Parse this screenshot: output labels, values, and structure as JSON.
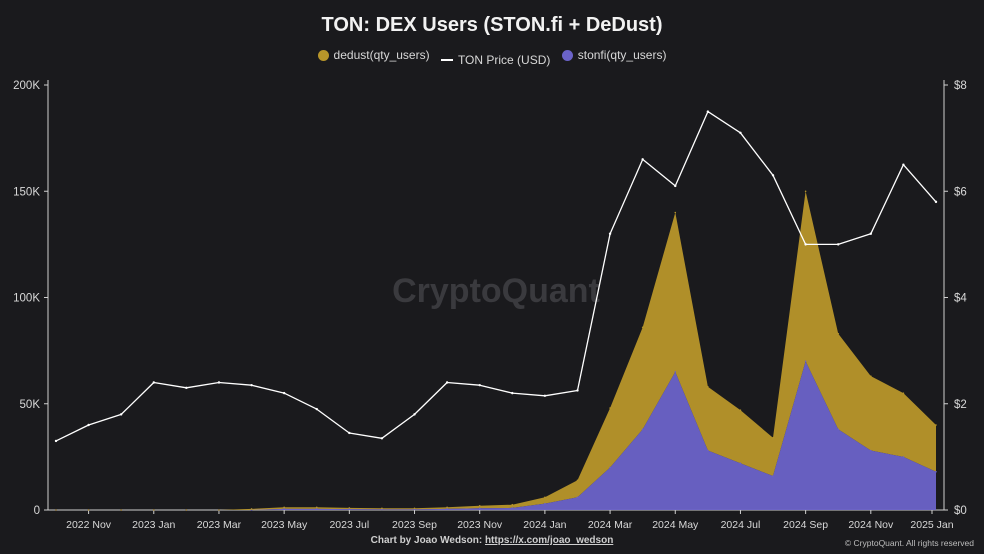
{
  "chart_data": {
    "type": "area",
    "title": "TON: DEX Users (STON.fi + DeDust)",
    "watermark": "CryptoQuant",
    "legend_position": "top-center",
    "grid": false,
    "x_ticks": [
      "2022 Nov",
      "2023 Jan",
      "2023 Mar",
      "2023 May",
      "2023 Jul",
      "2023 Sep",
      "2023 Nov",
      "2024 Jan",
      "2024 Mar",
      "2024 May",
      "2024 Jul",
      "2024 Sep",
      "2024 Nov",
      "2025 Jan"
    ],
    "y_left": {
      "ticks": [
        "0",
        "50K",
        "100K",
        "150K",
        "200K"
      ],
      "ylim": [
        0,
        200000
      ]
    },
    "y_right": {
      "ticks": [
        "$0",
        "$2",
        "$4",
        "$6",
        "$8"
      ],
      "ylim": [
        0,
        8
      ]
    },
    "x": [
      "2022-10",
      "2022-11",
      "2022-12",
      "2023-01",
      "2023-02",
      "2023-03",
      "2023-04",
      "2023-05",
      "2023-06",
      "2023-07",
      "2023-08",
      "2023-09",
      "2023-10",
      "2023-11",
      "2023-12",
      "2024-01",
      "2024-02",
      "2024-03",
      "2024-04",
      "2024-05",
      "2024-06",
      "2024-07",
      "2024-08",
      "2024-09",
      "2024-10",
      "2024-11",
      "2024-12",
      "2025-01"
    ],
    "series": [
      {
        "name": "dedust(qty_users)",
        "axis": "left",
        "color": "#b8962a",
        "values": [
          0,
          0,
          0,
          0,
          0,
          0,
          500,
          800,
          800,
          600,
          500,
          500,
          800,
          1200,
          1500,
          3000,
          8000,
          28000,
          48000,
          75000,
          30000,
          25000,
          18000,
          80000,
          45000,
          35000,
          30000,
          22000
        ]
      },
      {
        "name": "TON Price (USD)",
        "axis": "right",
        "color": "#ffffff",
        "values": [
          1.3,
          1.6,
          1.8,
          2.4,
          2.3,
          2.4,
          2.35,
          2.2,
          1.9,
          1.45,
          1.35,
          1.8,
          2.4,
          2.35,
          2.2,
          2.15,
          2.25,
          5.2,
          6.6,
          6.1,
          7.5,
          7.1,
          6.3,
          5.0,
          5.0,
          5.2,
          6.5,
          5.8
        ]
      },
      {
        "name": "stonfi(qty_users)",
        "axis": "left",
        "color": "#6b63c9",
        "values": [
          0,
          0,
          0,
          0,
          0,
          0,
          0,
          500,
          500,
          400,
          300,
          300,
          500,
          800,
          1000,
          3000,
          6000,
          20000,
          38000,
          65000,
          28000,
          22000,
          16000,
          70000,
          38000,
          28000,
          25000,
          18000
        ]
      }
    ]
  },
  "footer": {
    "credit_prefix": "Chart by Joao Wedson:",
    "credit_link": "https://x.com/joao_wedson",
    "copyright": "© CryptoQuant. All rights reserved"
  }
}
